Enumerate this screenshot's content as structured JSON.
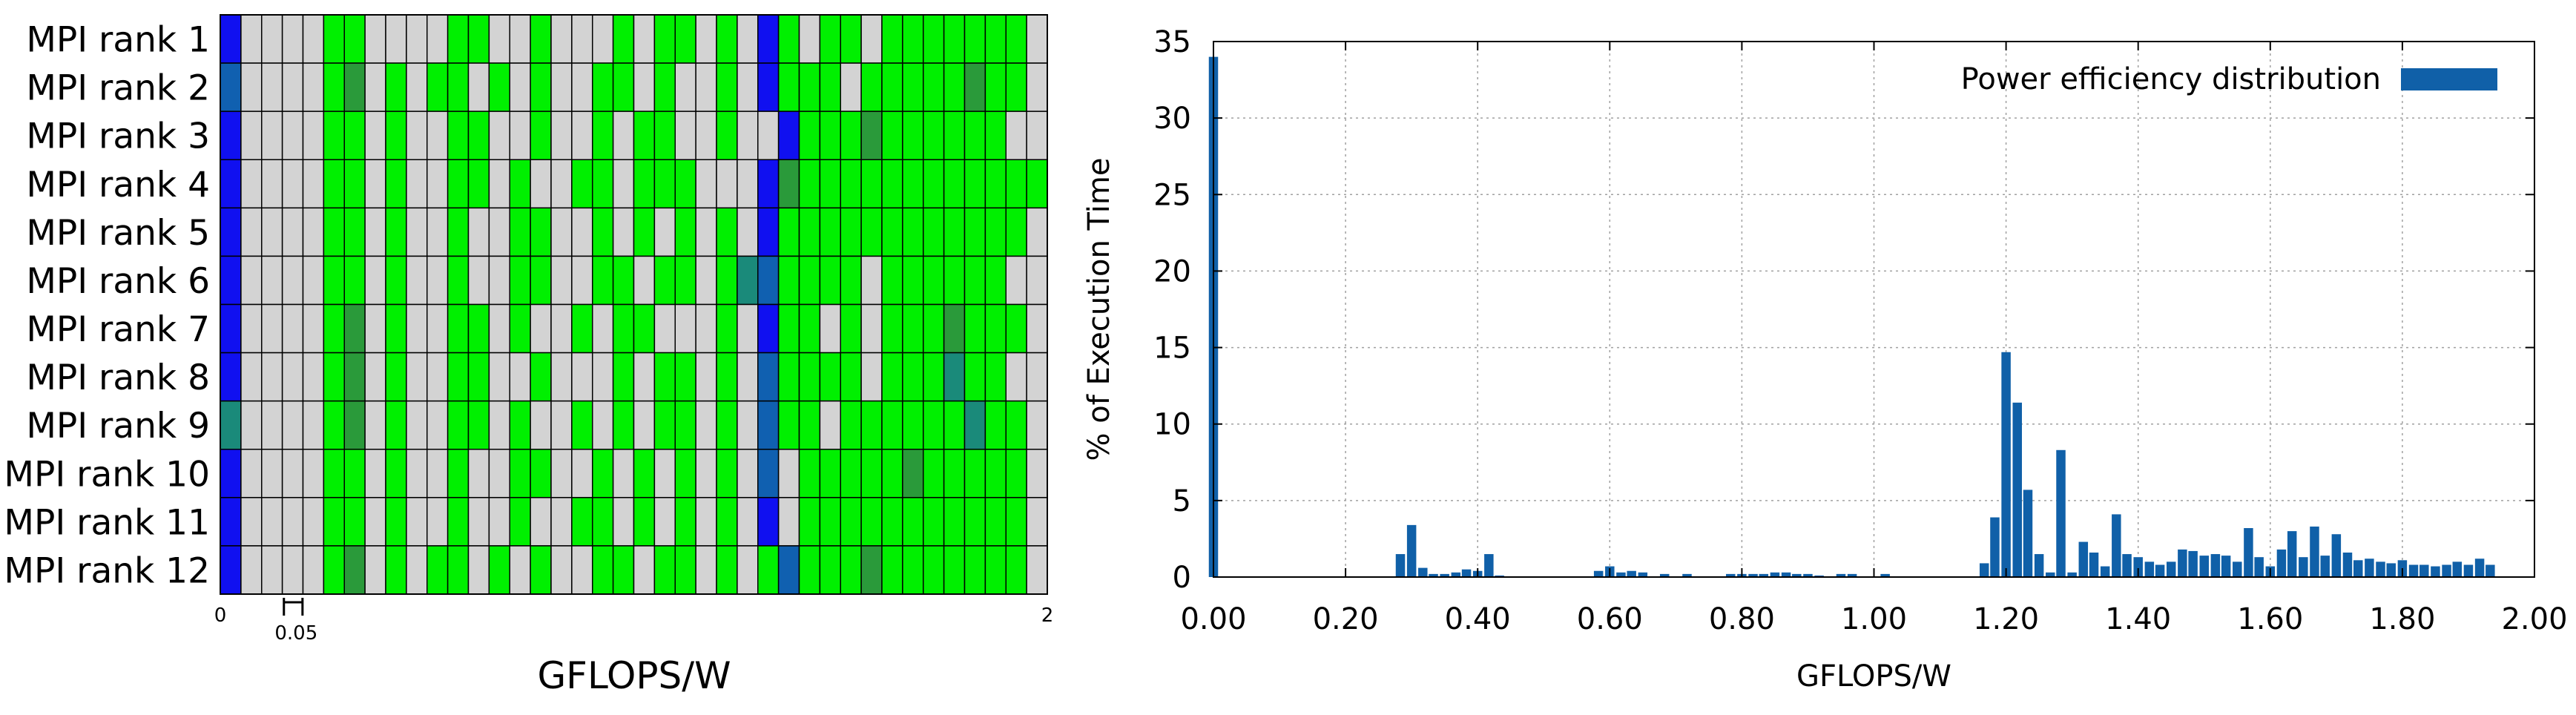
{
  "colors": {
    "gray": "#d3d3d3",
    "green": "#00f000",
    "dark_green": "#2a9a3a",
    "teal": "#1a8a7a",
    "steel_blue": "#1060b0",
    "blue": "#1010f0",
    "bar": "#1060a8",
    "grid": "#a0a0a0"
  },
  "chart_data": [
    {
      "type": "heatmap",
      "ylabel_rows": [
        "MPI rank 1",
        "MPI rank 2",
        "MPI rank 3",
        "MPI rank 4",
        "MPI rank 5",
        "MPI rank 6",
        "MPI rank 7",
        "MPI rank 8",
        "MPI rank 9",
        "MPI rank 10",
        "MPI rank 11",
        "MPI rank 12"
      ],
      "xlabel": "GFLOPS/W",
      "x_range": [
        0,
        2
      ],
      "bin_width": 0.05,
      "tick_labels": {
        "start": "0",
        "bin": "0.05",
        "end": "2"
      },
      "color_codes": {
        "0": "gray",
        "1": "green",
        "2": "dark_green",
        "3": "teal",
        "4": "steel_blue",
        "5": "blue"
      },
      "cells": [
        [
          5,
          0,
          0,
          0,
          0,
          1,
          1,
          0,
          0,
          0,
          0,
          1,
          1,
          0,
          0,
          1,
          0,
          0,
          0,
          1,
          0,
          1,
          1,
          0,
          1,
          0,
          5,
          1,
          0,
          1,
          1,
          0,
          1,
          1,
          1,
          1,
          1,
          1,
          1,
          0
        ],
        [
          4,
          0,
          0,
          0,
          0,
          1,
          2,
          0,
          1,
          0,
          1,
          1,
          0,
          1,
          0,
          1,
          0,
          0,
          1,
          1,
          0,
          1,
          0,
          0,
          1,
          0,
          5,
          1,
          1,
          1,
          0,
          1,
          1,
          1,
          1,
          1,
          2,
          1,
          1,
          0
        ],
        [
          5,
          0,
          0,
          0,
          0,
          1,
          1,
          0,
          1,
          0,
          0,
          1,
          1,
          0,
          0,
          1,
          0,
          0,
          1,
          0,
          1,
          1,
          0,
          0,
          1,
          0,
          0,
          5,
          1,
          1,
          1,
          2,
          1,
          1,
          1,
          1,
          1,
          1,
          0,
          0
        ],
        [
          5,
          0,
          0,
          0,
          0,
          1,
          1,
          0,
          1,
          0,
          0,
          1,
          1,
          0,
          1,
          0,
          0,
          1,
          1,
          0,
          1,
          1,
          1,
          0,
          0,
          0,
          5,
          2,
          1,
          1,
          1,
          1,
          1,
          1,
          1,
          1,
          1,
          1,
          1,
          1
        ],
        [
          5,
          0,
          0,
          0,
          0,
          1,
          1,
          0,
          1,
          0,
          0,
          1,
          0,
          0,
          1,
          1,
          0,
          0,
          1,
          0,
          1,
          0,
          1,
          0,
          1,
          0,
          5,
          1,
          1,
          1,
          1,
          1,
          1,
          1,
          1,
          1,
          1,
          1,
          1,
          0
        ],
        [
          5,
          0,
          0,
          0,
          0,
          1,
          1,
          0,
          1,
          0,
          0,
          1,
          0,
          0,
          1,
          1,
          0,
          0,
          1,
          1,
          0,
          1,
          1,
          0,
          1,
          3,
          4,
          1,
          1,
          1,
          1,
          0,
          1,
          1,
          1,
          1,
          1,
          1,
          0,
          0
        ],
        [
          5,
          0,
          0,
          0,
          0,
          1,
          2,
          0,
          1,
          0,
          0,
          1,
          1,
          0,
          1,
          0,
          0,
          1,
          0,
          1,
          1,
          0,
          0,
          0,
          1,
          0,
          5,
          1,
          1,
          0,
          1,
          0,
          1,
          1,
          1,
          2,
          1,
          1,
          1,
          0
        ],
        [
          5,
          0,
          0,
          0,
          0,
          1,
          2,
          0,
          1,
          0,
          0,
          1,
          1,
          0,
          0,
          1,
          0,
          0,
          0,
          1,
          0,
          1,
          1,
          0,
          1,
          0,
          4,
          1,
          1,
          1,
          1,
          0,
          1,
          1,
          1,
          3,
          1,
          1,
          0,
          0
        ],
        [
          3,
          0,
          0,
          0,
          0,
          1,
          2,
          0,
          1,
          0,
          0,
          1,
          1,
          0,
          1,
          0,
          0,
          1,
          0,
          1,
          0,
          1,
          1,
          0,
          1,
          0,
          4,
          1,
          1,
          0,
          1,
          1,
          1,
          1,
          1,
          1,
          3,
          1,
          1,
          0
        ],
        [
          5,
          0,
          0,
          0,
          0,
          1,
          1,
          0,
          1,
          0,
          0,
          1,
          0,
          0,
          1,
          1,
          0,
          0,
          1,
          0,
          1,
          0,
          1,
          0,
          1,
          0,
          4,
          0,
          1,
          1,
          1,
          1,
          1,
          2,
          1,
          1,
          1,
          1,
          1,
          0
        ],
        [
          5,
          0,
          0,
          0,
          0,
          1,
          1,
          0,
          1,
          0,
          0,
          1,
          0,
          0,
          1,
          0,
          0,
          1,
          1,
          0,
          1,
          0,
          1,
          0,
          1,
          0,
          5,
          0,
          1,
          1,
          1,
          1,
          1,
          1,
          1,
          1,
          1,
          1,
          1,
          0
        ],
        [
          5,
          0,
          0,
          0,
          0,
          1,
          2,
          0,
          1,
          0,
          1,
          1,
          0,
          1,
          0,
          1,
          0,
          0,
          1,
          1,
          0,
          1,
          1,
          0,
          1,
          0,
          1,
          4,
          1,
          1,
          1,
          2,
          1,
          1,
          1,
          1,
          1,
          1,
          1,
          0
        ]
      ]
    },
    {
      "type": "bar",
      "xlabel": "GFLOPS/W",
      "ylabel": "% of Execution Time",
      "xlim": [
        0,
        2
      ],
      "ylim": [
        0,
        35
      ],
      "grid": true,
      "legend_position": "top-right",
      "xticks": [
        "0.00",
        "0.20",
        "0.40",
        "0.60",
        "0.80",
        "1.00",
        "1.20",
        "1.40",
        "1.60",
        "1.80",
        "2.00"
      ],
      "yticks": [
        "0",
        "5",
        "10",
        "15",
        "20",
        "25",
        "30",
        "35"
      ],
      "bin_width": 0.0167,
      "series": [
        {
          "name": "Power efficiency distribution",
          "x": [
            0.0,
            0.283,
            0.3,
            0.317,
            0.333,
            0.35,
            0.367,
            0.383,
            0.4,
            0.417,
            0.433,
            0.583,
            0.6,
            0.617,
            0.633,
            0.65,
            0.683,
            0.717,
            0.783,
            0.8,
            0.817,
            0.833,
            0.85,
            0.867,
            0.883,
            0.9,
            0.917,
            0.95,
            0.967,
            1.017,
            1.167,
            1.183,
            1.2,
            1.217,
            1.233,
            1.25,
            1.267,
            1.283,
            1.3,
            1.317,
            1.333,
            1.35,
            1.367,
            1.383,
            1.4,
            1.417,
            1.433,
            1.45,
            1.467,
            1.483,
            1.5,
            1.517,
            1.533,
            1.55,
            1.567,
            1.583,
            1.6,
            1.617,
            1.633,
            1.65,
            1.667,
            1.683,
            1.7,
            1.717,
            1.733,
            1.75,
            1.767,
            1.783,
            1.8,
            1.817,
            1.833,
            1.85,
            1.867,
            1.883,
            1.9,
            1.917,
            1.933,
            1.95,
            1.967,
            1.983
          ],
          "values": [
            34.0,
            1.5,
            3.4,
            0.6,
            0.2,
            0.2,
            0.3,
            0.5,
            0.4,
            1.5,
            0.1,
            0.4,
            0.7,
            0.3,
            0.4,
            0.3,
            0.2,
            0.2,
            0.2,
            0.2,
            0.2,
            0.2,
            0.3,
            0.3,
            0.2,
            0.2,
            0.1,
            0.2,
            0.2,
            0.2,
            0.9,
            3.9,
            14.7,
            11.4,
            5.7,
            1.5,
            0.3,
            8.3,
            0.3,
            2.3,
            1.6,
            0.7,
            4.1,
            1.5,
            1.3,
            1.0,
            0.8,
            1.0,
            1.8,
            1.7,
            1.4,
            1.5,
            1.4,
            1.0,
            3.2,
            1.3,
            0.7,
            1.8,
            3.0,
            1.3,
            3.3,
            1.4,
            2.8,
            1.6,
            1.1,
            1.2,
            1.0,
            0.9,
            1.1,
            0.8,
            0.8,
            0.7,
            0.8,
            1.0,
            0.8,
            1.2,
            0.8,
            0.0,
            0.0,
            0.0
          ]
        }
      ]
    }
  ]
}
